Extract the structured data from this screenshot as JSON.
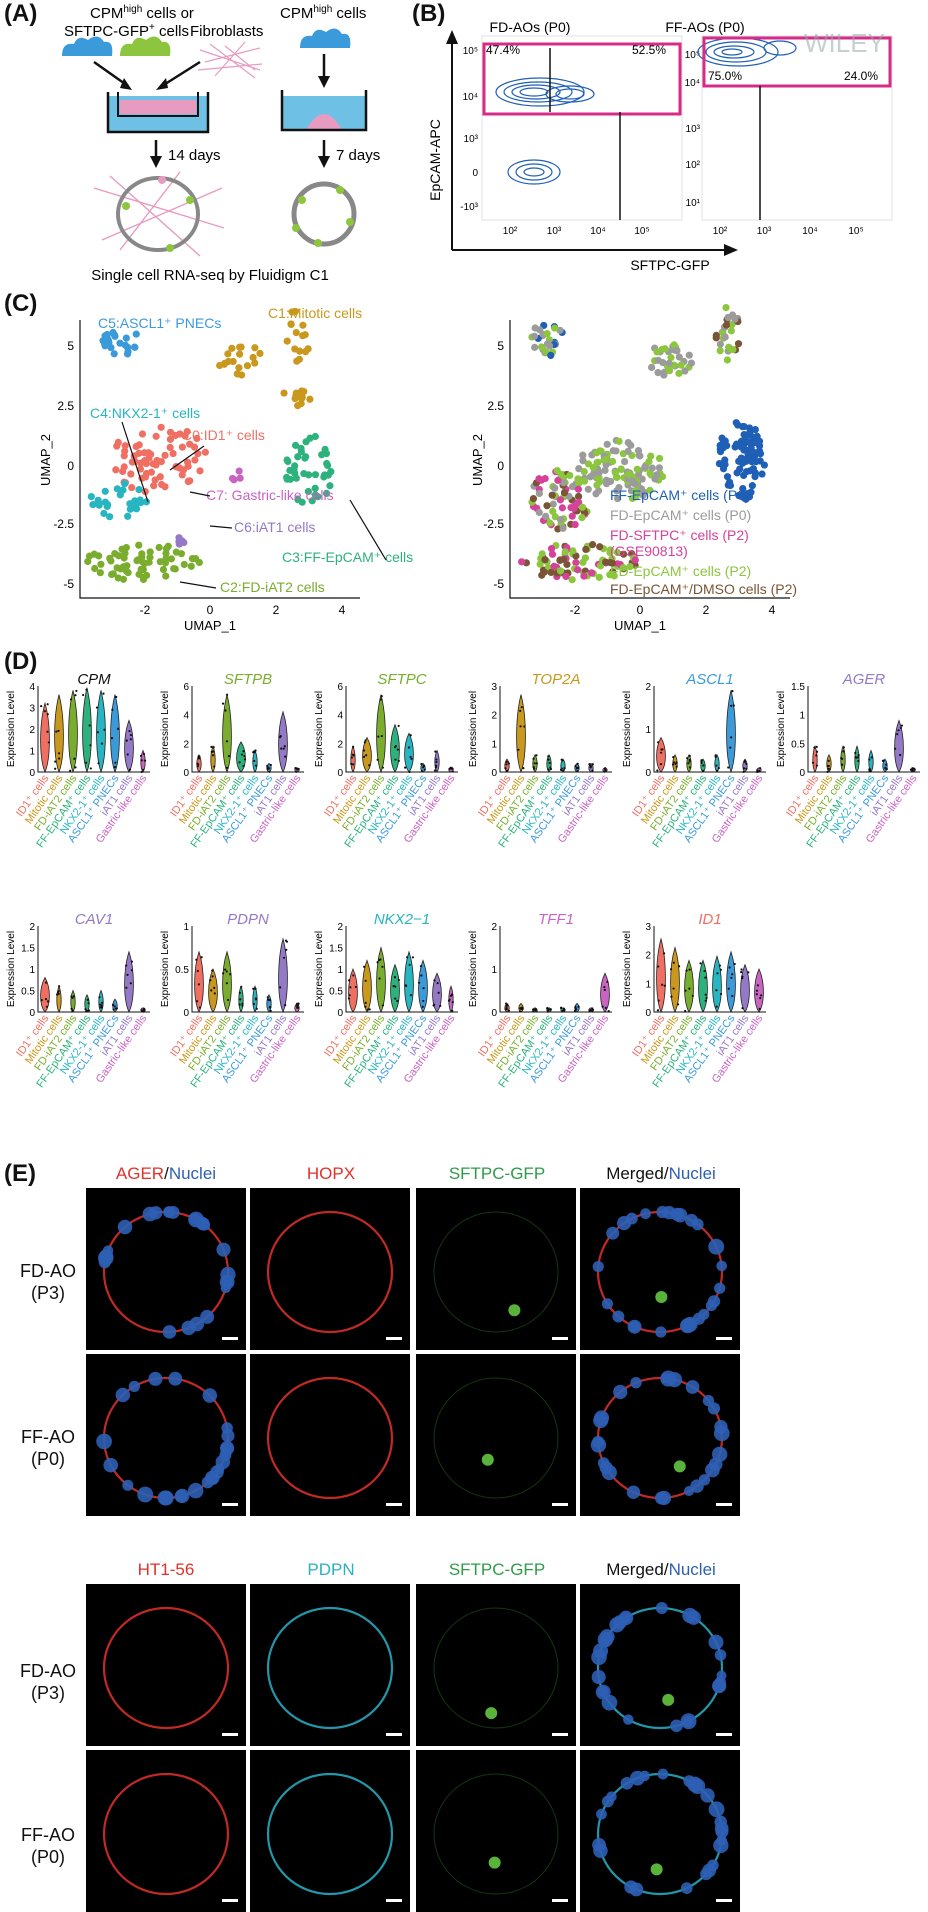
{
  "panels": {
    "A": "(A)",
    "B": "(B)",
    "C": "(C)",
    "D": "(D)",
    "E": "(E)"
  },
  "panel_a": {
    "left_cells_line1": "CPM",
    "left_cells_sup1": "high",
    "left_cells_line1b": " cells or",
    "left_cells_line2": "SFTPC-GFP",
    "left_cells_sup2": "+",
    "left_cells_line2b": " cells",
    "fibroblasts": "Fibroblasts",
    "right_cells": "CPM",
    "right_cells_sup": "high",
    "right_cells_b": " cells",
    "days_left": "14 days",
    "days_right": "7 days",
    "caption": "Single cell RNA-seq by Fluidigm C1",
    "colors": {
      "blue": "#3b9ad9",
      "green": "#8cc63f",
      "pink": "#e79bc0",
      "well": "#6ec1e4"
    }
  },
  "panel_b": {
    "plot1_title": "FD-AOs (P0)",
    "plot2_title": "FF-AOs (P0)",
    "ylabel": "EpCAM-APC",
    "xlabel": "SFTPC-GFP",
    "plot1_pct_left": "47.4%",
    "plot1_pct_right": "52.5%",
    "plot2_pct_left": "75.0%",
    "plot2_pct_right": "24.0%",
    "watermark": "WILEY",
    "y_ticks": [
      "10⁵",
      "10⁴",
      "10³",
      "0",
      "-10³"
    ],
    "y_ticks2": [
      "10⁵",
      "10⁴",
      "10³",
      "10²",
      "10¹"
    ],
    "x_ticks": [
      "10²",
      "10³",
      "10⁴",
      "10⁵"
    ],
    "gate_color": "#d62b87",
    "contour_color": "#1f5fb5"
  },
  "panel_c": {
    "xlabel": "UMAP_1",
    "ylabel": "UMAP_2",
    "x_ticks": [
      "-2",
      "0",
      "2",
      "4"
    ],
    "y_ticks": [
      "5",
      "2.5",
      "0",
      "-2.5",
      "-5"
    ],
    "clusters": [
      {
        "label": "C5:ASCL1⁺ PNECs",
        "color": "#3b9ad9"
      },
      {
        "label": "C1:Mitotic cells",
        "color": "#c9981c"
      },
      {
        "label": "C4:NKX2-1⁺ cells",
        "color": "#27b5c2"
      },
      {
        "label": "C0:ID1⁺ cells",
        "color": "#ef6f63"
      },
      {
        "label": "C7: Gastric-like cells",
        "color": "#c964c2"
      },
      {
        "label": "C6:iAT1 cells",
        "color": "#9479c6"
      },
      {
        "label": "C3:FF-EpCAM⁺ cells",
        "color": "#2db27d"
      },
      {
        "label": "C2:FD-iAT2 cells",
        "color": "#7aad2e"
      }
    ],
    "legend": [
      {
        "label": "FF-EpCAM⁺ cells (P0)",
        "color": "#1f5fb5"
      },
      {
        "label": "FD-EpCAM⁺ cells (P0)",
        "color": "#9b9b9b"
      },
      {
        "label": "FD-SFTPC⁺ cells (P2)",
        "color": "#d6419b"
      },
      {
        "label": "(GSE90813)",
        "color": "#d6419b"
      },
      {
        "label": "FD-EpCAM⁺ cells (P2)",
        "color": "#8cc63f"
      },
      {
        "label": "FD-EpCAM⁺/DMSO cells (P2)",
        "color": "#7a5535"
      }
    ]
  },
  "panel_d": {
    "ylabel": "Expression Level",
    "categories": [
      "ID1⁺ cells",
      "Mitotic cells",
      "FD-iAT2 cells",
      "FF-EpCAM⁺ cells",
      "NKX2-1⁺ cells",
      "ASCL1⁺ PNECs",
      "iAT1 cells",
      "Gastric-like cells"
    ],
    "category_colors": [
      "#ef6f63",
      "#c9981c",
      "#7aad2e",
      "#2db27d",
      "#27b5c2",
      "#3b9ad9",
      "#9479c6",
      "#c964c2"
    ],
    "genes_row1": [
      {
        "name": "CPM",
        "color": "#111111",
        "ymax": 4,
        "ticks": [
          "4",
          "3",
          "2",
          "1",
          "0"
        ],
        "levels": [
          0.8,
          0.9,
          0.95,
          0.98,
          0.95,
          0.9,
          0.6,
          0.25
        ]
      },
      {
        "name": "SFTPB",
        "color": "#7aad2e",
        "ymax": 6,
        "ticks": [
          "6",
          "4",
          "2",
          "0"
        ],
        "levels": [
          0.2,
          0.3,
          0.9,
          0.35,
          0.25,
          0.1,
          0.7,
          0.05
        ]
      },
      {
        "name": "SFTPC",
        "color": "#7aad2e",
        "ymax": 6,
        "ticks": [
          "6",
          "4",
          "2",
          "0"
        ],
        "levels": [
          0.3,
          0.4,
          0.9,
          0.55,
          0.45,
          0.1,
          0.25,
          0.05
        ]
      },
      {
        "name": "TOP2A",
        "color": "#c9981c",
        "ymax": 3,
        "ticks": [
          "3",
          "2",
          "1",
          "0"
        ],
        "levels": [
          0.15,
          0.9,
          0.2,
          0.2,
          0.15,
          0.1,
          0.1,
          0.05
        ]
      },
      {
        "name": "ASCL1",
        "color": "#3b9ad9",
        "ymax": 2,
        "ticks": [
          "2",
          "1",
          "0"
        ],
        "levels": [
          0.4,
          0.2,
          0.2,
          0.15,
          0.2,
          0.95,
          0.15,
          0.05
        ]
      },
      {
        "name": "AGER",
        "color": "#9479c6",
        "ymax": 1.5,
        "ticks": [
          "1.5",
          "1",
          "0.5",
          "0"
        ],
        "levels": [
          0.3,
          0.2,
          0.3,
          0.3,
          0.25,
          0.15,
          0.6,
          0.05
        ]
      }
    ],
    "genes_row2": [
      {
        "name": "CAV1",
        "color": "#9479c6",
        "ymax": 2,
        "ticks": [
          "2",
          "1.5",
          "1",
          "0.5",
          "0"
        ],
        "levels": [
          0.4,
          0.3,
          0.25,
          0.2,
          0.25,
          0.15,
          0.7,
          0.05
        ]
      },
      {
        "name": "PDPN",
        "color": "#9479c6",
        "ymax": 1,
        "ticks": [
          "1",
          "0.5",
          "0"
        ],
        "levels": [
          0.7,
          0.5,
          0.7,
          0.3,
          0.3,
          0.2,
          0.85,
          0.1
        ]
      },
      {
        "name": "NKX2−1",
        "color": "#27b5c2",
        "ymax": 2,
        "ticks": [
          "2",
          "1.5",
          "1",
          "0.5",
          "0"
        ],
        "levels": [
          0.5,
          0.6,
          0.75,
          0.55,
          0.7,
          0.6,
          0.45,
          0.3
        ]
      },
      {
        "name": "TFF1",
        "color": "#c964c2",
        "ymax": 2,
        "ticks": [
          "2",
          "1",
          "0"
        ],
        "levels": [
          0.1,
          0.1,
          0.05,
          0.05,
          0.05,
          0.1,
          0.05,
          0.45
        ]
      },
      {
        "name": "ID1",
        "color": "#ef6f63",
        "ymax": 3,
        "ticks": [
          "3",
          "2",
          "1",
          "0"
        ],
        "levels": [
          0.85,
          0.75,
          0.6,
          0.6,
          0.65,
          0.7,
          0.55,
          0.5
        ]
      }
    ]
  },
  "panel_e": {
    "block1_headers": [
      {
        "parts": [
          {
            "t": "AGER",
            "c": "#e0312b"
          },
          {
            "t": "/",
            "c": "#111"
          },
          {
            "t": "Nuclei",
            "c": "#2d5fb5"
          }
        ]
      },
      {
        "parts": [
          {
            "t": "HOPX",
            "c": "#e0312b"
          }
        ]
      },
      {
        "parts": [
          {
            "t": "SFTPC-GFP",
            "c": "#2d9b48"
          }
        ]
      },
      {
        "parts": [
          {
            "t": "Merged",
            "c": "#111"
          },
          {
            "t": "/",
            "c": "#111"
          },
          {
            "t": "Nuclei",
            "c": "#2d5fb5"
          }
        ]
      }
    ],
    "block2_headers": [
      {
        "parts": [
          {
            "t": "HT1-56",
            "c": "#e0312b"
          }
        ]
      },
      {
        "parts": [
          {
            "t": "PDPN",
            "c": "#2ab0c8"
          }
        ]
      },
      {
        "parts": [
          {
            "t": "SFTPC-GFP",
            "c": "#2d9b48"
          }
        ]
      },
      {
        "parts": [
          {
            "t": "Merged",
            "c": "#111"
          },
          {
            "t": "/",
            "c": "#111"
          },
          {
            "t": "Nuclei",
            "c": "#2d5fb5"
          }
        ]
      }
    ],
    "rows": [
      "FD-AO",
      "(P3)",
      "FF-AO",
      "(P0)"
    ]
  }
}
